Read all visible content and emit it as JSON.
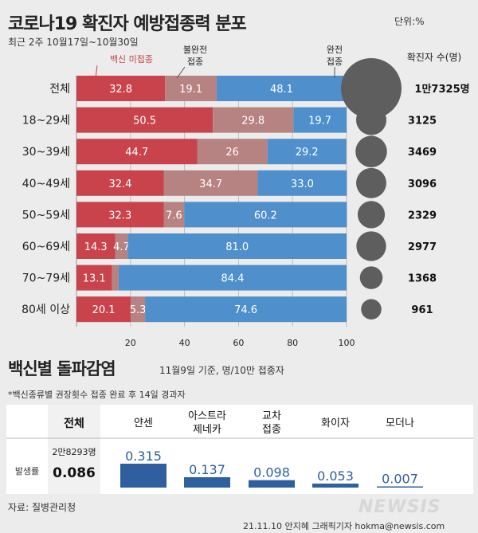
{
  "chart1": {
    "title": "코로나19 확진자 예방접종력 분포",
    "unit": "단위:%",
    "subtitle": "최근 2주 10월17일~10월30일",
    "legend": {
      "unvaccinated": "백신 미접종",
      "partial_line1": "불완전",
      "partial_line2": "접종",
      "complete_line1": "완전",
      "complete_line2": "접종",
      "count_header": "확진자 수(명)"
    },
    "colors": {
      "unvaccinated": "#c8434c",
      "partial": "#b78282",
      "complete": "#4f8fcb",
      "bubble": "#5e5e5e"
    }
  },
  "chart_data": [
    {
      "type": "bar",
      "orientation": "horizontal-stacked",
      "title": "코로나19 확진자 예방접종력 분포",
      "categories": [
        "전체",
        "18~29세",
        "30~39세",
        "40~49세",
        "50~59세",
        "60~69세",
        "70~79세",
        "80세 이상"
      ],
      "series": [
        {
          "name": "백신 미접종",
          "values": [
            32.8,
            50.5,
            44.7,
            32.4,
            32.3,
            14.3,
            13.1,
            20.1
          ],
          "labels": [
            "32.8",
            "50.5",
            "44.7",
            "32.4",
            "32.3",
            "14.3",
            "13.1",
            "20.1"
          ]
        },
        {
          "name": "불완전 접종",
          "values": [
            19.1,
            29.8,
            26,
            34.7,
            7.6,
            4.7,
            2.5,
            5.3
          ],
          "labels": [
            "19.1",
            "29.8",
            "26",
            "34.7",
            "7.6",
            "4.7",
            "",
            "5.3"
          ]
        },
        {
          "name": "완전 접종",
          "values": [
            48.1,
            19.7,
            29.2,
            33.0,
            60.2,
            81.0,
            84.4,
            74.6
          ],
          "labels": [
            "48.1",
            "19.7",
            "29.2",
            "33.0",
            "60.2",
            "81.0",
            "84.4",
            "74.6"
          ]
        }
      ],
      "counts": [
        17325,
        3125,
        3469,
        3096,
        2329,
        2977,
        1368,
        961
      ],
      "count_labels": [
        "1만7325명",
        "3125",
        "3469",
        "3096",
        "2329",
        "2977",
        "1368",
        "961"
      ],
      "xlim": [
        0,
        100
      ],
      "xticks": [
        20,
        40,
        60,
        80,
        100
      ]
    },
    {
      "type": "bar",
      "title": "백신별 돌파감염",
      "categories": [
        "얀센",
        "아스트라 제네카",
        "교차 접종",
        "화이자",
        "모더나"
      ],
      "values": [
        0.315,
        0.137,
        0.098,
        0.053,
        0.007
      ],
      "labels": [
        "0.315",
        "0.137",
        "0.098",
        "0.053",
        "0.007"
      ]
    }
  ],
  "chart2": {
    "title": "백신별 돌파감염",
    "subtitle": "11월9일 기준, 명/10만 접종자",
    "note": "*백신종류별 권장횟수 접종 완료 후 14일 경과자",
    "total_header": "전체",
    "total_count": "2만8293명",
    "total_value": "0.086",
    "row_label": "발생률",
    "headers": [
      {
        "line1": "얀센",
        "line2": ""
      },
      {
        "line1": "아스트라",
        "line2": "제네카"
      },
      {
        "line1": "교차",
        "line2": "접종"
      },
      {
        "line1": "화이자",
        "line2": ""
      },
      {
        "line1": "모더나",
        "line2": ""
      }
    ],
    "bar_color": "#2f5f9e"
  },
  "footer": {
    "source": "자료: 질병관리청",
    "credit": "21.11.10 안지혜 그래픽기자 hokma@newsis.com",
    "watermark": "NEWSIS"
  }
}
